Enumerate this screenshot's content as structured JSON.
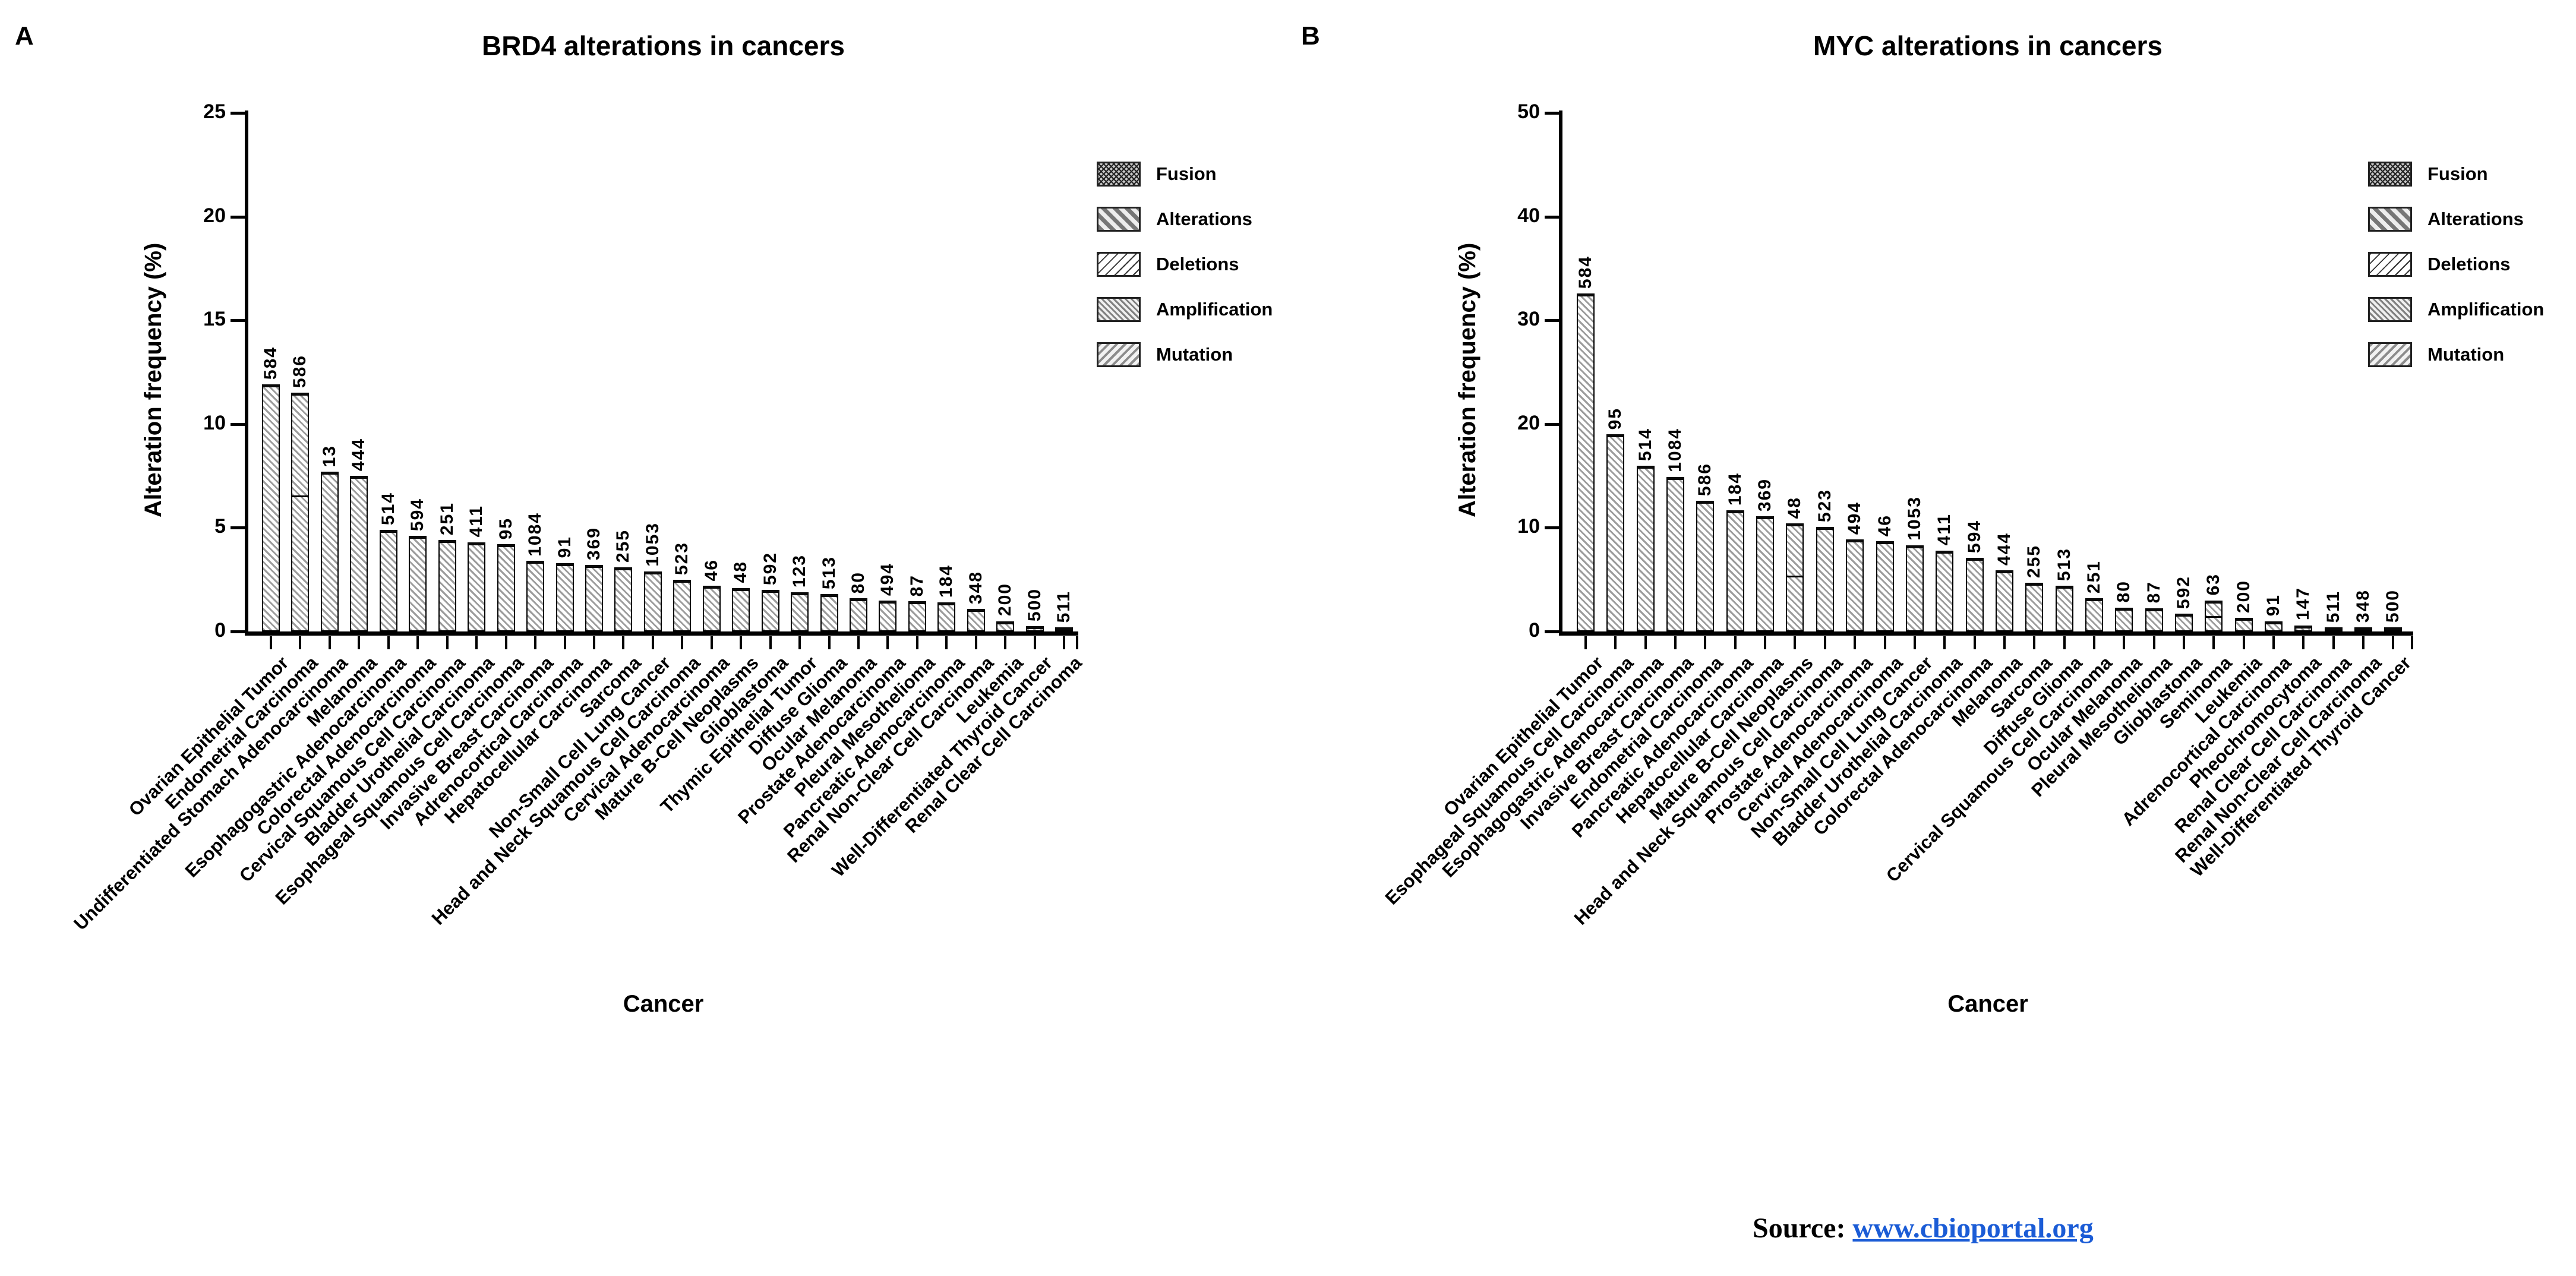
{
  "figure": {
    "panel_letters": [
      "A",
      "B"
    ],
    "source_prefix": "Source:",
    "source_link": "www.cbioportal.org"
  },
  "chart_data": [
    {
      "type": "bar",
      "panel": "A",
      "title": "BRD4 alterations in cancers",
      "xlabel": "Cancer",
      "ylabel": "Alteration frequency (%)",
      "ylim": [
        0,
        25
      ],
      "yticks": [
        0,
        5,
        10,
        15,
        20,
        25
      ],
      "grid": false,
      "legend_position": "right",
      "legend": [
        {
          "label": "Fusion",
          "pattern": "fusion"
        },
        {
          "label": "Alterations",
          "pattern": "alterations"
        },
        {
          "label": "Deletions",
          "pattern": "deletions"
        },
        {
          "label": "Amplification",
          "pattern": "amplification"
        },
        {
          "label": "Mutation",
          "pattern": "mutation"
        }
      ],
      "categories": [
        "Ovarian Epithelial Tumor",
        "Endometrial Carcinoma",
        "Undifferentiated Stomach Adenocarcinoma",
        "Melanoma",
        "Esophagogastric Adenocarcinoma",
        "Colorectal Adenocarcinoma",
        "Cervical Squamous Cell Carcinoma",
        "Bladder Urothelial Carcinoma",
        "Esophageal Squamous Cell Carcinoma",
        "Invasive Breast Carcinoma",
        "Adrenocortical Carcinoma",
        "Hepatocellular Carcinoma",
        "Sarcoma",
        "Non-Small Cell Lung Cancer",
        "Head and Neck Squamous Cell Carcinoma",
        "Cervical Adenocarcinoma",
        "Mature B-Cell Neoplasms",
        "Glioblastoma",
        "Thymic Epithelial Tumor",
        "Diffuse Glioma",
        "Ocular Melanoma",
        "Prostate Adenocarcinoma",
        "Pleural Mesothelioma",
        "Pancreatic Adenocarcinoma",
        "Renal Non-Clear Cell Carcinoma",
        "Leukemia",
        "Well-Differentiated Thyroid Cancer",
        "Renal Clear Cell Carcinoma"
      ],
      "sample_counts": [
        584,
        586,
        13,
        444,
        514,
        594,
        251,
        411,
        95,
        1084,
        91,
        369,
        255,
        1053,
        523,
        46,
        48,
        592,
        123,
        513,
        80,
        494,
        87,
        184,
        348,
        200,
        500,
        511
      ],
      "values": [
        11.9,
        11.5,
        7.7,
        7.5,
        4.9,
        4.6,
        4.4,
        4.3,
        4.2,
        3.4,
        3.3,
        3.2,
        3.1,
        2.9,
        2.5,
        2.2,
        2.1,
        2.0,
        1.9,
        1.8,
        1.6,
        1.5,
        1.45,
        1.4,
        1.1,
        0.5,
        0.25,
        0.2
      ],
      "dividers": {
        "1": 0.57
      }
    },
    {
      "type": "bar",
      "panel": "B",
      "title": "MYC alterations in cancers",
      "xlabel": "Cancer",
      "ylabel": "Alteration frequency (%)",
      "ylim": [
        0,
        50
      ],
      "yticks": [
        0,
        10,
        20,
        30,
        40,
        50
      ],
      "grid": false,
      "legend_position": "right",
      "legend": [
        {
          "label": "Fusion",
          "pattern": "fusion"
        },
        {
          "label": "Alterations",
          "pattern": "alterations"
        },
        {
          "label": "Deletions",
          "pattern": "deletions"
        },
        {
          "label": "Amplification",
          "pattern": "amplification"
        },
        {
          "label": "Mutation",
          "pattern": "mutation"
        }
      ],
      "categories": [
        "Ovarian Epithelial Tumor",
        "Esophageal Squamous Cell Carcinoma",
        "Esophagogastric Adenocarcinoma",
        "Invasive Breast Carcinoma",
        "Endometrial Carcinoma",
        "Pancreatic Adenocarcinoma",
        "Hepatocellular Carcinoma",
        "Mature B-Cell Neoplasms",
        "Head and Neck Squamous Cell Carcinoma",
        "Prostate Adenocarcinoma",
        "Cervical Adenocarcinoma",
        "Non-Small Cell Lung Cancer",
        "Bladder Urothelial Carcinoma",
        "Colorectal Adenocarcinoma",
        "Melanoma",
        "Sarcoma",
        "Diffuse Glioma",
        "Cervical Squamous Cell Carcinoma",
        "Ocular Melanoma",
        "Pleural Mesothelioma",
        "Glioblastoma",
        "Seminoma",
        "Leukemia",
        "Adrenocortical Carcinoma",
        "Pheochromocytoma",
        "Renal Clear Cell Carcinoma",
        "Renal Non-Clear Cell Carcinoma",
        "Well-Differentiated Thyroid Cancer"
      ],
      "sample_counts": [
        584,
        95,
        514,
        1084,
        586,
        184,
        369,
        48,
        523,
        494,
        46,
        1053,
        411,
        594,
        444,
        255,
        513,
        251,
        80,
        87,
        592,
        63,
        200,
        91,
        147,
        511,
        348,
        500
      ],
      "values": [
        32.6,
        19.0,
        16.0,
        14.9,
        12.6,
        11.7,
        11.1,
        10.4,
        10.1,
        8.9,
        8.7,
        8.3,
        7.8,
        7.1,
        5.9,
        4.7,
        4.4,
        3.2,
        2.3,
        2.25,
        1.7,
        3.0,
        1.3,
        1.0,
        0.6,
        0.3,
        0.25,
        0.2
      ],
      "dividers": {
        "7": 0.52,
        "21": 0.5
      }
    }
  ]
}
